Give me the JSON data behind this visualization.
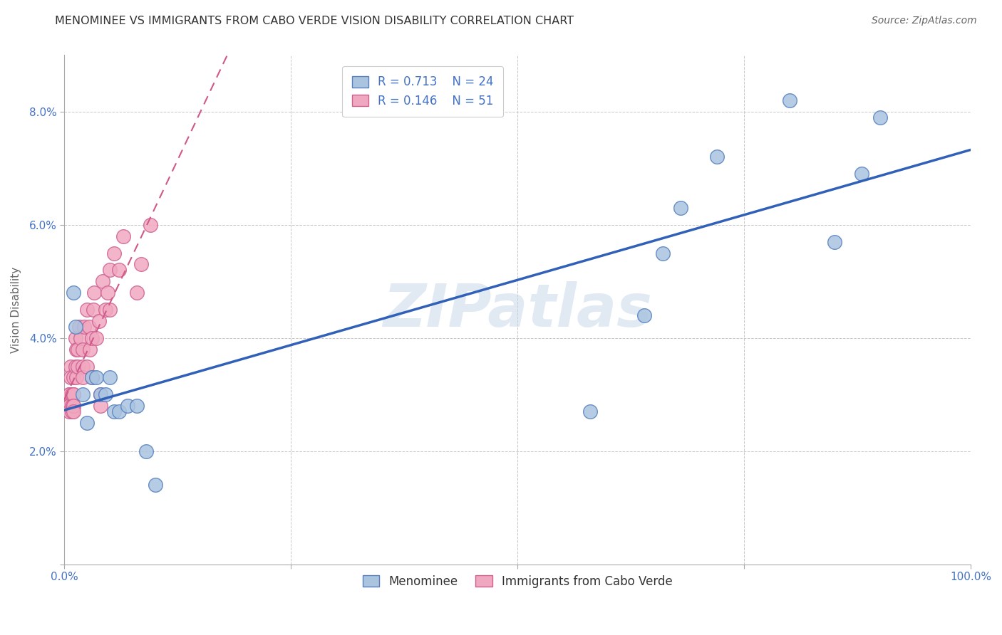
{
  "title": "MENOMINEE VS IMMIGRANTS FROM CABO VERDE VISION DISABILITY CORRELATION CHART",
  "source": "Source: ZipAtlas.com",
  "ylabel": "Vision Disability",
  "legend_blue_label": "Menominee",
  "legend_pink_label": "Immigrants from Cabo Verde",
  "R_blue": 0.713,
  "N_blue": 24,
  "R_pink": 0.146,
  "N_pink": 51,
  "blue_color": "#aac4e0",
  "blue_edge_color": "#5580c0",
  "blue_line_color": "#3060b8",
  "pink_color": "#f0a8c0",
  "pink_edge_color": "#d06090",
  "pink_line_color": "#d05888",
  "background_color": "#ffffff",
  "watermark": "ZIPatlas",
  "xlim": [
    0.0,
    1.0
  ],
  "ylim": [
    0.0,
    0.09
  ],
  "xticks": [
    0.0,
    0.25,
    0.5,
    0.75,
    1.0
  ],
  "yticks": [
    0.0,
    0.02,
    0.04,
    0.06,
    0.08
  ],
  "xtick_labels": [
    "0.0%",
    "",
    "",
    "",
    "100.0%"
  ],
  "ytick_labels": [
    "",
    "2.0%",
    "4.0%",
    "6.0%",
    "8.0%"
  ],
  "blue_x": [
    0.01,
    0.012,
    0.02,
    0.025,
    0.03,
    0.035,
    0.04,
    0.045,
    0.05,
    0.055,
    0.06,
    0.07,
    0.08,
    0.09,
    0.1,
    0.58,
    0.64,
    0.66,
    0.68,
    0.72,
    0.8,
    0.85,
    0.88,
    0.9
  ],
  "blue_y": [
    0.048,
    0.042,
    0.03,
    0.025,
    0.033,
    0.033,
    0.03,
    0.03,
    0.033,
    0.027,
    0.027,
    0.028,
    0.028,
    0.02,
    0.014,
    0.027,
    0.044,
    0.055,
    0.063,
    0.072,
    0.082,
    0.057,
    0.069,
    0.079
  ],
  "pink_x": [
    0.005,
    0.005,
    0.005,
    0.005,
    0.005,
    0.007,
    0.007,
    0.008,
    0.008,
    0.008,
    0.01,
    0.01,
    0.01,
    0.01,
    0.01,
    0.01,
    0.012,
    0.012,
    0.013,
    0.013,
    0.015,
    0.015,
    0.016,
    0.018,
    0.02,
    0.02,
    0.02,
    0.022,
    0.025,
    0.025,
    0.027,
    0.028,
    0.03,
    0.03,
    0.032,
    0.033,
    0.035,
    0.038,
    0.04,
    0.04,
    0.042,
    0.045,
    0.048,
    0.05,
    0.05,
    0.055,
    0.06,
    0.065,
    0.08,
    0.085,
    0.095
  ],
  "pink_y": [
    0.03,
    0.03,
    0.028,
    0.028,
    0.027,
    0.035,
    0.033,
    0.03,
    0.028,
    0.027,
    0.033,
    0.03,
    0.03,
    0.028,
    0.028,
    0.027,
    0.04,
    0.035,
    0.038,
    0.033,
    0.038,
    0.035,
    0.042,
    0.04,
    0.038,
    0.035,
    0.033,
    0.042,
    0.045,
    0.035,
    0.042,
    0.038,
    0.04,
    0.033,
    0.045,
    0.048,
    0.04,
    0.043,
    0.03,
    0.028,
    0.05,
    0.045,
    0.048,
    0.052,
    0.045,
    0.055,
    0.052,
    0.058,
    0.048,
    0.053,
    0.06
  ],
  "title_fontsize": 11.5,
  "axis_label_fontsize": 11,
  "tick_fontsize": 11,
  "legend_fontsize": 12,
  "tick_color": "#4472c4"
}
